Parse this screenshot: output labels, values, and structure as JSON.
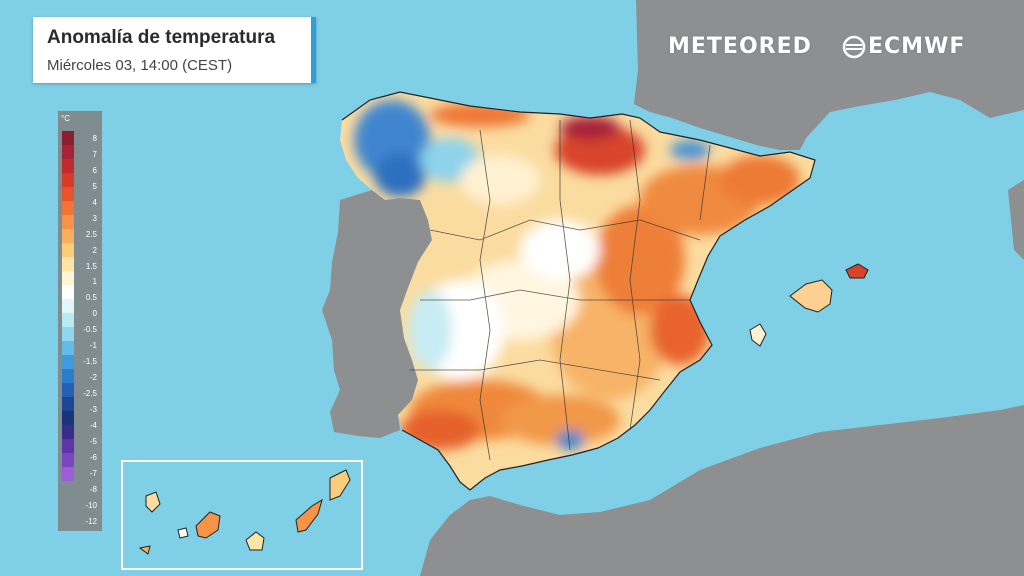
{
  "header": {
    "title": "Anomalía de temperatura",
    "subtitle": "Miércoles 03, 14:00 (CEST)"
  },
  "brands": {
    "meteored": "METEORED",
    "ecmwf": "ECMWF"
  },
  "legend": {
    "unit": "°C",
    "items": [
      {
        "label": "8",
        "color": "#8a1e33"
      },
      {
        "label": "7",
        "color": "#a8233a"
      },
      {
        "label": "6",
        "color": "#c22b2e"
      },
      {
        "label": "5",
        "color": "#d83a28"
      },
      {
        "label": "4",
        "color": "#e8542a"
      },
      {
        "label": "3",
        "color": "#f07436"
      },
      {
        "label": "2.5",
        "color": "#f59446"
      },
      {
        "label": "2",
        "color": "#f8b060"
      },
      {
        "label": "1.5",
        "color": "#fbcc7c"
      },
      {
        "label": "1",
        "color": "#fde5a6"
      },
      {
        "label": "0.5",
        "color": "#fff5d6"
      },
      {
        "label": "0",
        "color": "#ffffff"
      },
      {
        "label": "-0.5",
        "color": "#e2f6f7"
      },
      {
        "label": "-1",
        "color": "#b9eaf2"
      },
      {
        "label": "-1.5",
        "color": "#8fd7ef"
      },
      {
        "label": "-2",
        "color": "#62bbe8"
      },
      {
        "label": "-2.5",
        "color": "#3f9bdc"
      },
      {
        "label": "-3",
        "color": "#2f7bcb"
      },
      {
        "label": "-4",
        "color": "#2560b4"
      },
      {
        "label": "-5",
        "color": "#1d4697"
      },
      {
        "label": "-6",
        "color": "#1a3478"
      },
      {
        "label": "-7",
        "color": "#3a2d8a"
      },
      {
        "label": "-8",
        "color": "#5b36a6"
      },
      {
        "label": "-10",
        "color": "#7b47c0"
      },
      {
        "label": "-12",
        "color": "#9a5fd6"
      }
    ]
  },
  "colors": {
    "sea": "#7fcfe6",
    "land_outside": "#8d8f91",
    "accent": "#2a9fd8"
  }
}
